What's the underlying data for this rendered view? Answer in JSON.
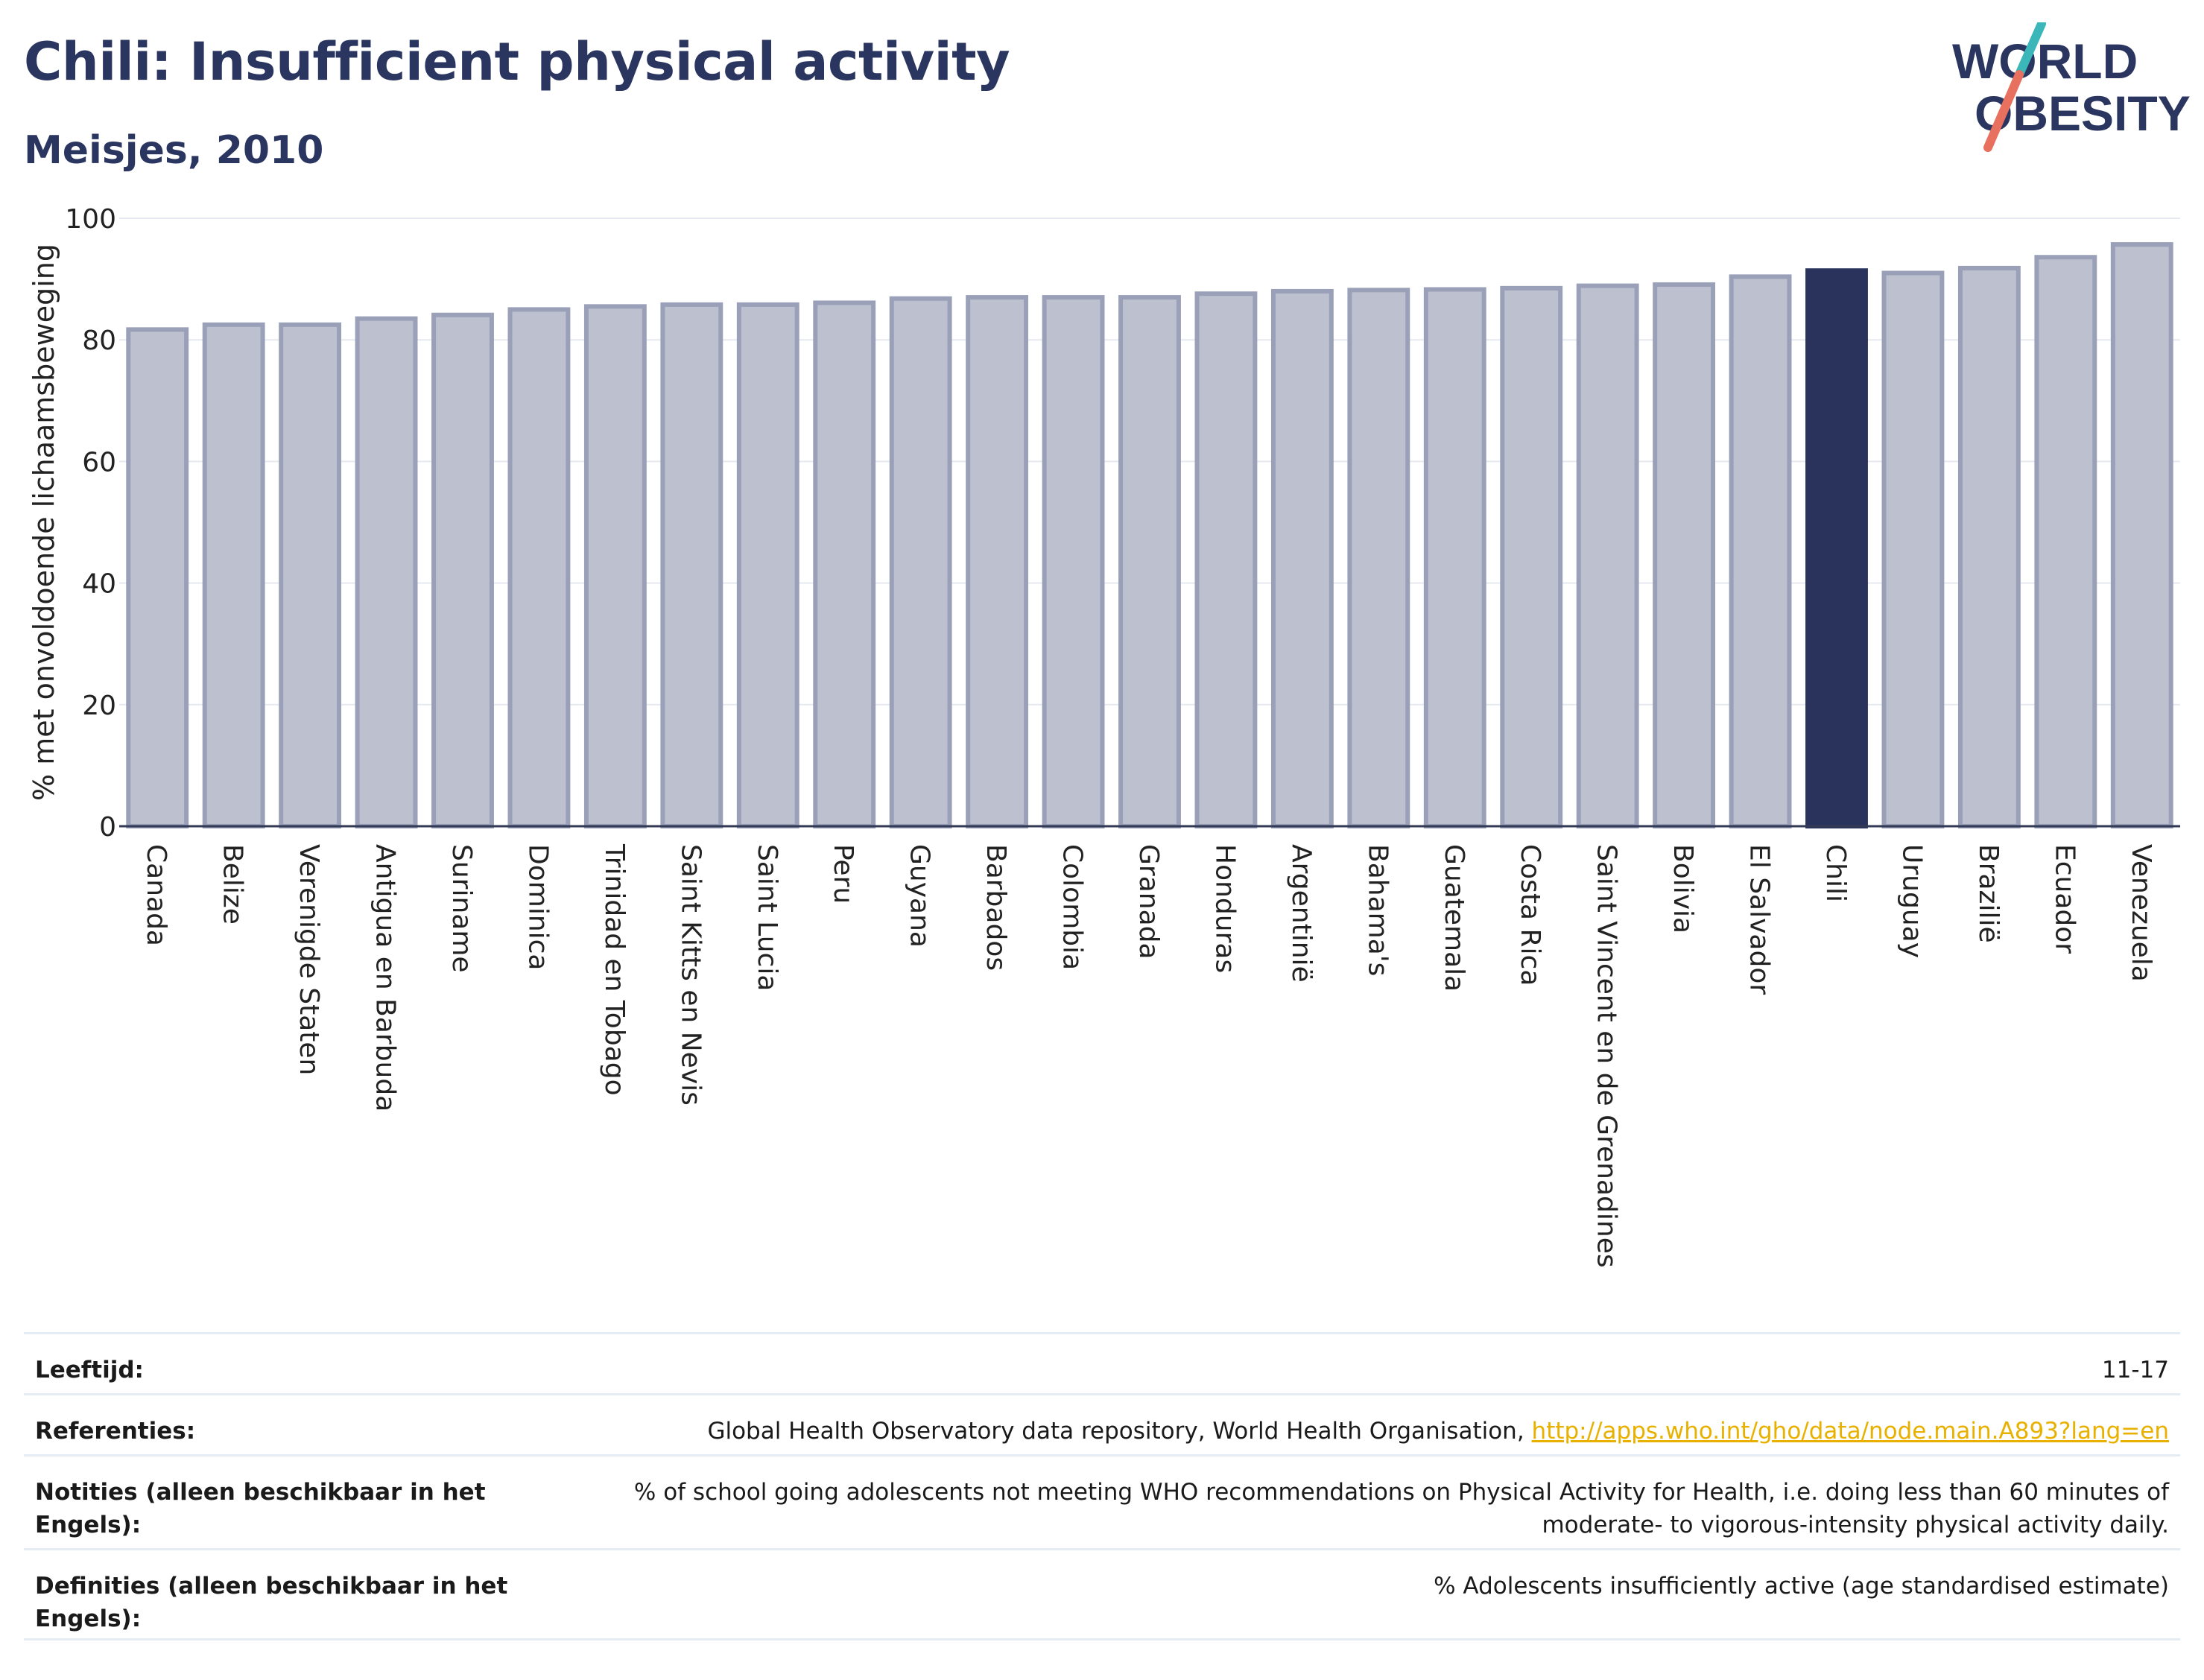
{
  "header": {
    "title": "Chili: Insufficient physical activity",
    "subtitle": "Meisjes, 2010"
  },
  "logo": {
    "line1": "WORLD",
    "line2": "OBESITY"
  },
  "colors": {
    "bar": "#bcc0cf",
    "bar_border": "#9aa0b8",
    "highlight": "#29335c",
    "title": "#2a3560",
    "link": "#e8b100"
  },
  "chart_data": {
    "type": "bar",
    "ylabel": "% met onvoldoende lichaamsbeweging",
    "ylim": [
      0,
      100
    ],
    "yticks": [
      0,
      20,
      40,
      60,
      80,
      100
    ],
    "grid": true,
    "highlight": "Chili",
    "categories": [
      "Canada",
      "Belize",
      "Verenigde Staten",
      "Antigua en Barbuda",
      "Suriname",
      "Dominica",
      "Trinidad en Tobago",
      "Saint Kitts en Nevis",
      "Saint Lucia",
      "Peru",
      "Guyana",
      "Barbados",
      "Colombia",
      "Granada",
      "Honduras",
      "Argentinië",
      "Bahama's",
      "Guatemala",
      "Costa Rica",
      "Saint Vincent en de Grenadines",
      "Bolivia",
      "El Salvador",
      "Chili",
      "Uruguay",
      "Brazilië",
      "Ecuador",
      "Venezuela"
    ],
    "values": [
      81.7,
      82.5,
      82.5,
      83.5,
      84.1,
      85.0,
      85.5,
      85.8,
      85.8,
      86.1,
      86.8,
      87.0,
      87.0,
      87.0,
      87.6,
      88.0,
      88.2,
      88.3,
      88.5,
      88.9,
      89.1,
      90.4,
      91.4,
      91.0,
      91.8,
      93.6,
      95.7
    ]
  },
  "footer": {
    "rows": [
      {
        "label": "Leeftijd:",
        "value": "11-17"
      },
      {
        "label": "Referenties:",
        "value": "Global Health Observatory data repository, World Health Organisation, ",
        "link": "http://apps.who.int/gho/data/node.main.A893?lang=en"
      },
      {
        "label": "Notities (alleen beschikbaar in het Engels):",
        "value": "% of school going adolescents not meeting WHO recommendations on Physical Activity for Health, i.e. doing less than 60 minutes of moderate- to vigorous-intensity physical activity daily."
      },
      {
        "label": "Definities (alleen beschikbaar in het Engels):",
        "value": "% Adolescents insufficiently active (age standardised estimate)"
      }
    ]
  }
}
